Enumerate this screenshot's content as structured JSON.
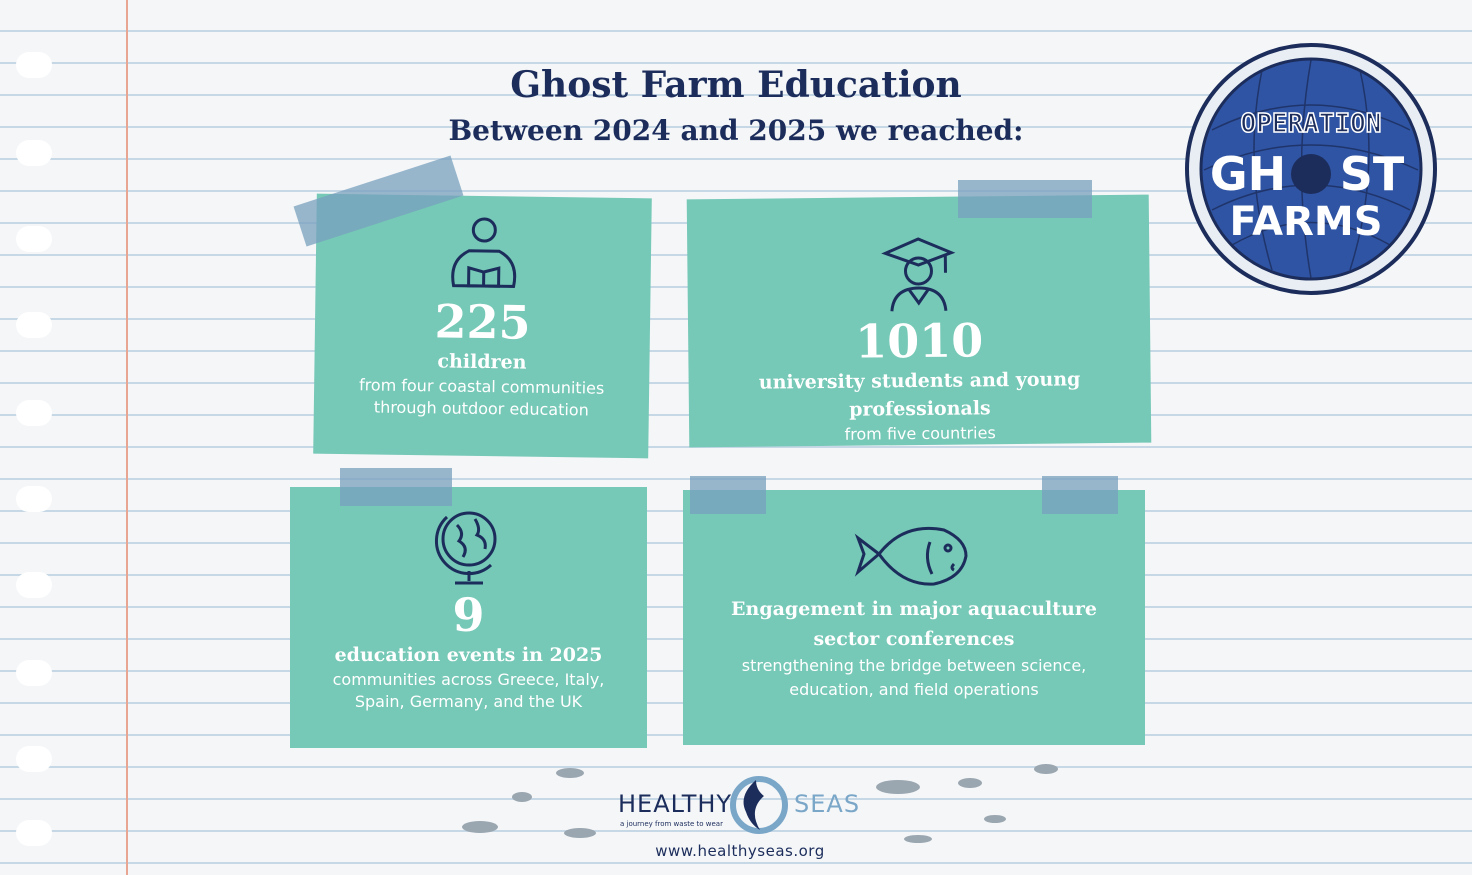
{
  "header": {
    "title": "Ghost Farm Education",
    "subtitle": "Between 2024 and 2025 we reached:"
  },
  "cards": [
    {
      "number": "225",
      "label": [
        "children"
      ],
      "description": [
        "from four coastal communities",
        "through outdoor education"
      ]
    },
    {
      "number": "1010",
      "label": [
        "university students and young professionals"
      ],
      "description": [
        "from five countries"
      ]
    },
    {
      "number": "9",
      "label": [
        "education events in 2025"
      ],
      "description": [
        "communities across Greece, Italy,",
        "Spain, Germany, and the UK"
      ]
    },
    {
      "label": [
        "Engagement in major aquaculture",
        "sector conferences"
      ],
      "description": [
        "strengthening the bridge between science,",
        "education, and field operations"
      ]
    }
  ],
  "logo": {
    "top": "OPERATION",
    "middle_left": "GH",
    "middle_right": "ST",
    "bottom": "FARMS"
  },
  "footer": {
    "brand_left": "HEALTHY",
    "brand_right": "SEAS",
    "tagline": "a journey from waste to wear",
    "url": "www.healthyseas.org"
  }
}
